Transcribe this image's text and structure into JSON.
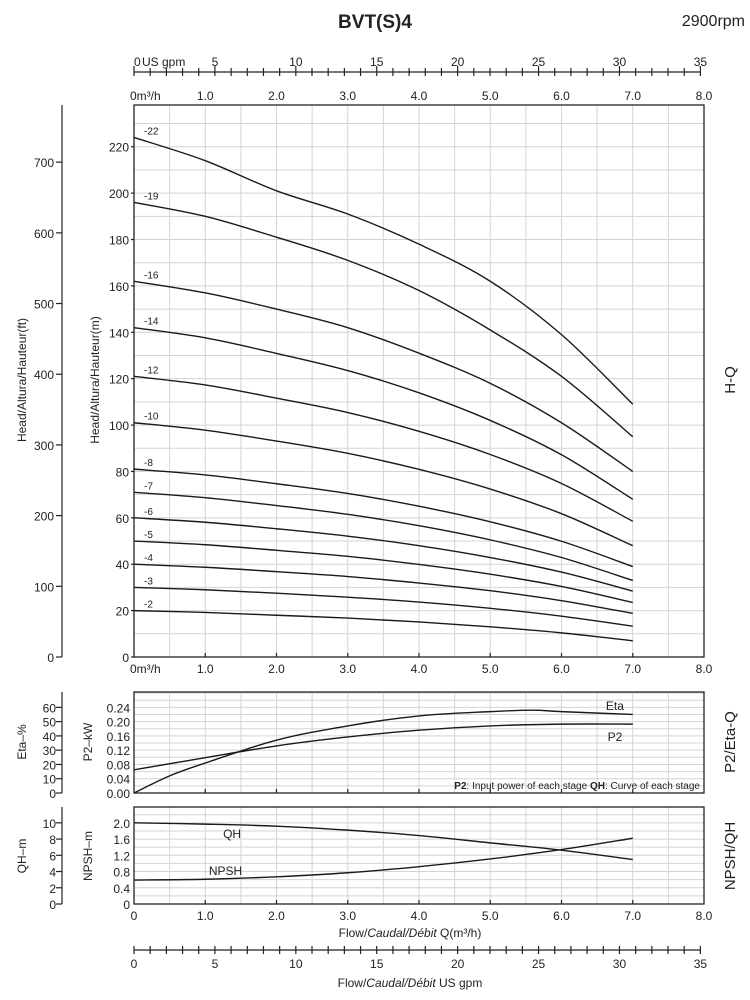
{
  "title": "BVT(S)4",
  "rpm": "2900rpm",
  "chart_data": {
    "type": "line",
    "x": [
      0,
      1,
      2,
      3,
      4,
      5,
      6,
      7
    ],
    "x_unit": "m³/h",
    "xlim": [
      0,
      8
    ],
    "x_ticks": [
      "0",
      "1.0",
      "2.0",
      "3.0",
      "4.0",
      "5.0",
      "6.0",
      "7.0",
      "8.0"
    ],
    "x_tick_first_top": "0m³/h",
    "gpm_ticks": [
      "0",
      "5",
      "10",
      "15",
      "20",
      "25",
      "30",
      "35"
    ],
    "gpm_top_label": "US gpm",
    "xlabel": {
      "pre": "Flow/",
      "ital": "Caudal/Débit",
      "post": " Q(m³/h)"
    },
    "xlabel_gpm": {
      "pre": "Flow/",
      "ital": "Caudal/Débit",
      "post": "  US gpm"
    },
    "panels": [
      {
        "name": "H-Q",
        "side_label": "H-Q",
        "ylabel": "Head/Altura/Hauteur(m)",
        "ylabel2": "Head/Altura/Hauteur(ft)",
        "ylim": [
          0,
          238
        ],
        "y_ticks": [
          0,
          20,
          40,
          60,
          80,
          100,
          120,
          140,
          160,
          180,
          200,
          220
        ],
        "y2_ticks": [
          0,
          100,
          200,
          300,
          400,
          500,
          600,
          700
        ],
        "series": [
          {
            "name": "-22",
            "values": [
              224,
              214,
              201,
              191,
              178,
              162,
              139,
              109
            ]
          },
          {
            "name": "-19",
            "values": [
              196,
              190,
              181,
              171,
              158,
              141,
              121,
              95
            ]
          },
          {
            "name": "-16",
            "values": [
              162,
              157,
              150,
              142,
              131,
              118,
              101,
              80
            ]
          },
          {
            "name": "-14",
            "values": [
              142,
              137.6,
              130.9,
              123.5,
              113.9,
              102,
              87.2,
              68
            ]
          },
          {
            "name": "-12",
            "values": [
              121,
              117.3,
              111.6,
              105.4,
              97.3,
              87.3,
              74.8,
              58.5
            ]
          },
          {
            "name": "-10",
            "values": [
              101,
              97.8,
              93.1,
              87.8,
              80.9,
              72.4,
              61.8,
              48
            ]
          },
          {
            "name": "-8",
            "values": [
              81,
              78.5,
              74.7,
              70.5,
              65,
              58.3,
              49.9,
              39
            ]
          },
          {
            "name": "-7",
            "values": [
              71,
              68.7,
              65.3,
              61.5,
              56.6,
              50.5,
              42.9,
              33
            ]
          },
          {
            "name": "-6",
            "values": [
              60,
              58.1,
              55.3,
              52.1,
              48,
              42.9,
              36.6,
              28.4
            ]
          },
          {
            "name": "-5",
            "values": [
              50,
              48.4,
              46,
              43.4,
              39.9,
              35.7,
              30.4,
              23.5
            ]
          },
          {
            "name": "-4",
            "values": [
              40,
              38.7,
              36.8,
              34.7,
              31.9,
              28.6,
              24.3,
              18.8
            ]
          },
          {
            "name": "-3",
            "values": [
              30,
              29,
              27.5,
              25.8,
              23.7,
              21,
              17.6,
              13.3
            ]
          },
          {
            "name": "-2",
            "values": [
              20,
              19.2,
              18,
              16.8,
              15.1,
              13,
              10.4,
              7
            ]
          }
        ]
      },
      {
        "name": "P2/Eta-Q",
        "side_label": "P2/Eta-Q",
        "ylabel": "P2–kW",
        "ylabel2": "Eta–%",
        "ylim": [
          0,
          0.283
        ],
        "y_ticks": [
          "0.00",
          "0.04",
          "0.08",
          "0.12",
          "0.16",
          "0.20",
          "0.24"
        ],
        "y2_ticks": [
          0,
          10,
          20,
          30,
          40,
          50,
          60
        ],
        "series": [
          {
            "name": "Eta",
            "unit": "%",
            "x": [
              0,
              0.5,
              1,
              2,
              3,
              4,
              5,
              5.6,
              6,
              7
            ],
            "values": [
              0,
              12,
              21,
              37,
              47,
              54,
              57,
              58,
              57,
              55
            ]
          },
          {
            "name": "P2",
            "unit": "kW",
            "x": [
              0,
              1,
              2,
              3,
              4,
              5,
              6,
              7
            ],
            "values": [
              0.065,
              0.099,
              0.132,
              0.157,
              0.176,
              0.188,
              0.193,
              0.193
            ]
          }
        ],
        "note": {
          "b1": "P2",
          "t1": ": Input power of each stage ",
          "b2": "QH",
          "t2": ": Curve of each stage"
        }
      },
      {
        "name": "NPSH/QH",
        "side_label": "NPSH/QH",
        "ylabel": "NPSH–m",
        "ylabel2": "QH–m",
        "ylim": [
          0,
          2.39
        ],
        "y_ticks": [
          "0",
          "0.4",
          "0.8",
          "1.2",
          "1.6",
          "2.0"
        ],
        "y2_ticks": [
          0,
          2,
          4,
          6,
          8,
          10
        ],
        "series": [
          {
            "name": "QH",
            "unit": "m",
            "values": [
              10.0,
              9.84,
              9.59,
              9.1,
              8.43,
              7.53,
              6.63,
              5.48
            ]
          },
          {
            "name": "NPSH",
            "unit": "m",
            "values": [
              0.59,
              0.61,
              0.67,
              0.77,
              0.92,
              1.11,
              1.34,
              1.62
            ]
          }
        ]
      }
    ]
  }
}
